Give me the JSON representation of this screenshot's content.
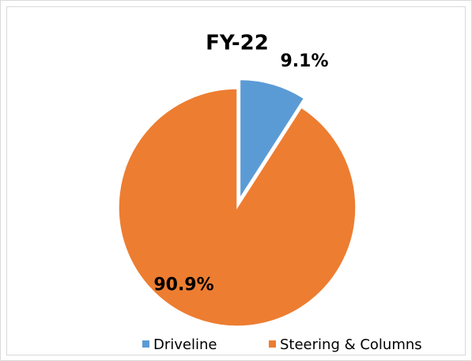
{
  "chart_data": {
    "type": "pie",
    "title": "FY-22",
    "categories": [
      "Driveline",
      "Steering & Columns"
    ],
    "values": [
      9.1,
      90.9
    ],
    "value_labels": [
      "9.1%",
      "90.9%"
    ],
    "colors": [
      "#5b9bd5",
      "#ed7d31"
    ],
    "exploded": [
      true,
      false
    ],
    "legend": "bottom"
  }
}
